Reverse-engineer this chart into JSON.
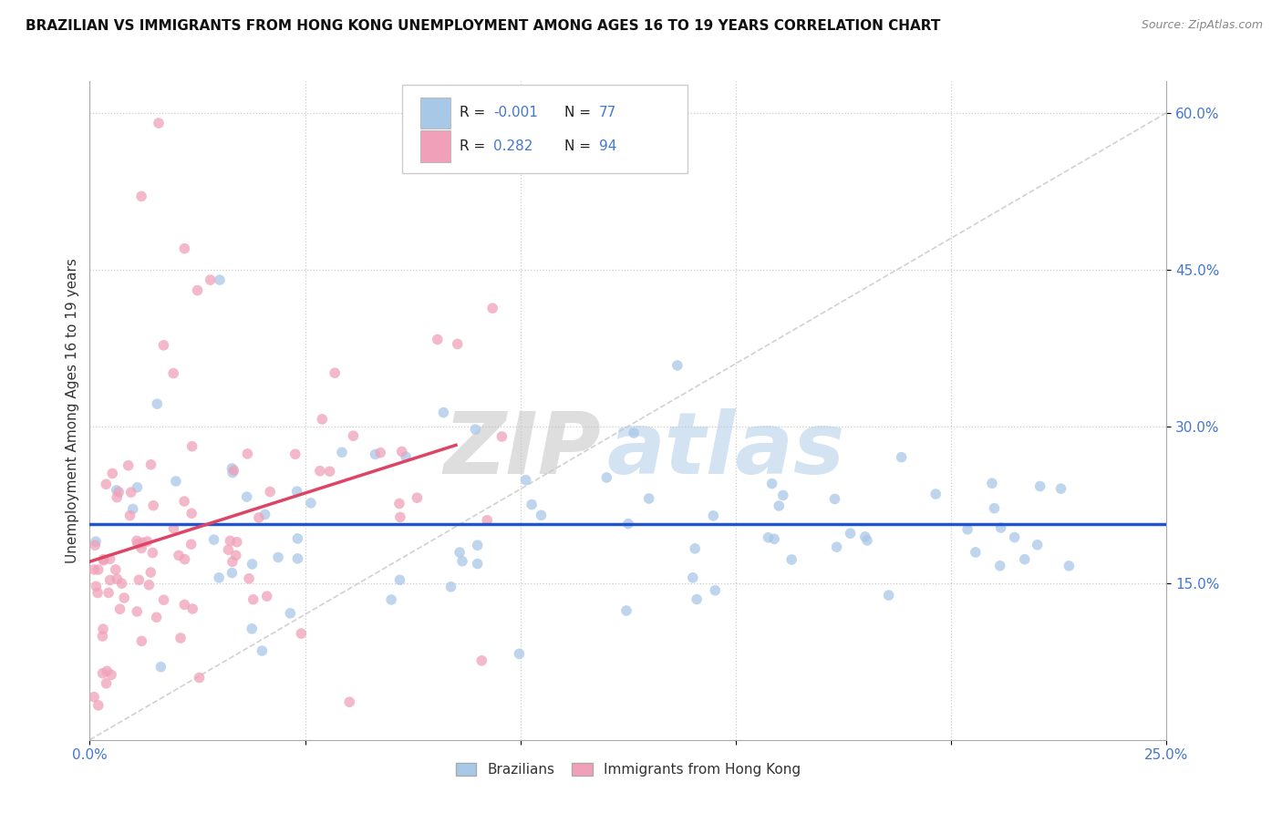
{
  "title": "BRAZILIAN VS IMMIGRANTS FROM HONG KONG UNEMPLOYMENT AMONG AGES 16 TO 19 YEARS CORRELATION CHART",
  "source": "Source: ZipAtlas.com",
  "watermark_zip": "ZIP",
  "watermark_atlas": "atlas",
  "legend_blue_r": "-0.001",
  "legend_blue_n": "77",
  "legend_pink_r": "0.282",
  "legend_pink_n": "94",
  "blue_color": "#a8c8e8",
  "pink_color": "#f0a0b8",
  "blue_line_color": "#2255cc",
  "pink_line_color": "#dd4466",
  "diag_color": "#cccccc",
  "background_color": "#ffffff",
  "grid_color": "#cccccc",
  "text_blue": "#4477cc",
  "xlim": [
    0.0,
    0.25
  ],
  "ylim": [
    0.0,
    0.63
  ],
  "yticks": [
    0.15,
    0.3,
    0.45,
    0.6
  ],
  "ytick_labels": [
    "15.0%",
    "30.0%",
    "45.0%",
    "60.0%"
  ],
  "xticks": [
    0.0,
    0.05,
    0.1,
    0.15,
    0.2,
    0.25
  ],
  "xtick_labels": [
    "0.0%",
    "",
    "",
    "",
    "",
    "25.0%"
  ]
}
